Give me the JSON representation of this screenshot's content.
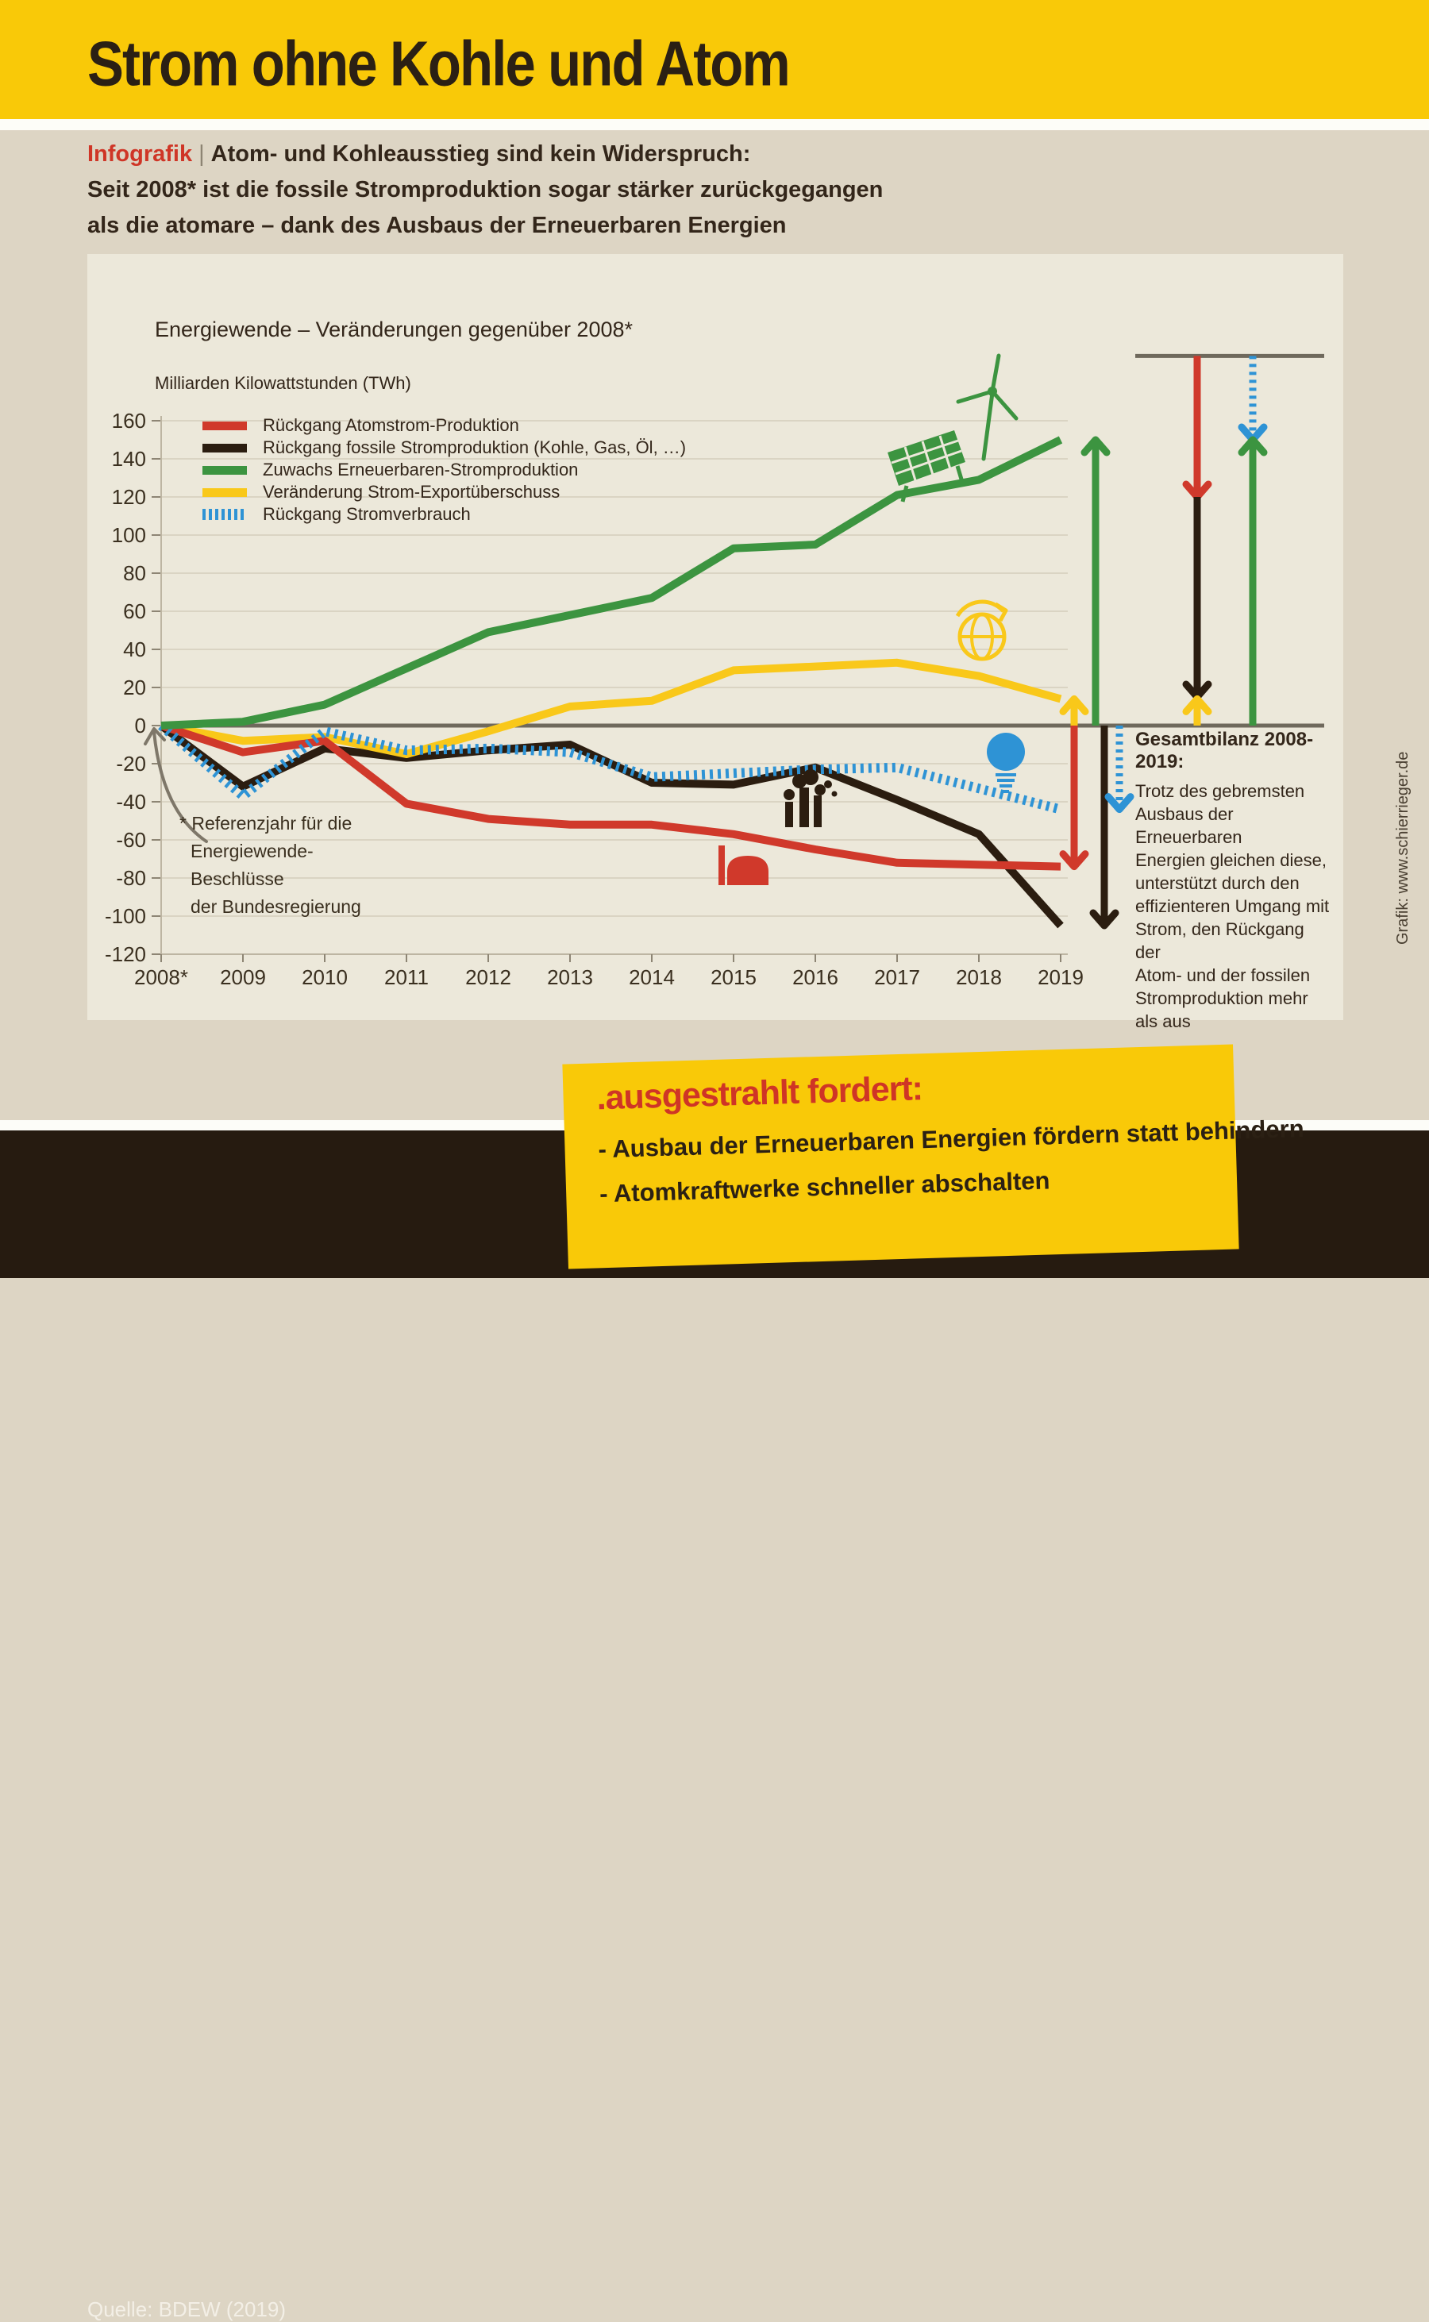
{
  "header": {
    "title": "Strom ohne Kohle und Atom"
  },
  "intro": {
    "tag": "Infografik",
    "separator": "|",
    "line1": "Atom- und Kohleausstieg sind kein Widerspruch:",
    "line2": "Seit 2008* ist die fossile Stromproduktion sogar stärker zurückgegangen",
    "line3": "als die atomare – dank des Ausbaus der Erneuerbaren Energien"
  },
  "chart_data": {
    "type": "line",
    "title": "Energiewende – Veränderungen gegenüber 2008*",
    "ylabel": "Milliarden Kilowattstunden (TWh)",
    "x_labels": [
      "2008*",
      "2009",
      "2010",
      "2011",
      "2012",
      "2013",
      "2014",
      "2015",
      "2016",
      "2017",
      "2018",
      "2019"
    ],
    "y_ticks": [
      160,
      140,
      120,
      100,
      80,
      60,
      40,
      20,
      0,
      -20,
      -40,
      -60,
      -80,
      -100,
      -120
    ],
    "ylim": [
      -120,
      160
    ],
    "grid": true,
    "legend_position": "top-left",
    "series": [
      {
        "id": "fossil",
        "name": "Rückgang fossile Stromproduktion (Kohle, Gas, Öl, …)",
        "color": "#2b1d10",
        "dash": "solid",
        "values": [
          0,
          -32,
          -12,
          -17,
          -13,
          -10,
          -30,
          -31,
          -22,
          -39,
          -57,
          -105
        ]
      },
      {
        "id": "export",
        "name": "Veränderung Strom-Exportüberschuss",
        "color": "#f9c81a",
        "dash": "solid",
        "values": [
          0,
          -8,
          -6,
          -15,
          -3,
          10,
          13,
          29,
          31,
          33,
          26,
          14
        ]
      },
      {
        "id": "atom",
        "name": "Rückgang Atomstrom-Produktion",
        "color": "#d0392b",
        "dash": "solid",
        "values": [
          0,
          -14,
          -8,
          -41,
          -49,
          -52,
          -52,
          -57,
          -65,
          -72,
          -73,
          -74
        ]
      },
      {
        "id": "verbrauch",
        "name": "Rückgang Stromverbrauch",
        "color": "#2e93d5",
        "dash": "dotted",
        "values": [
          0,
          -37,
          -3,
          -13,
          -12,
          -14,
          -27,
          -25,
          -23,
          -22,
          -33,
          -44
        ]
      },
      {
        "id": "erneuerbare",
        "name": "Zuwachs Erneuerbaren-Stromproduktion",
        "color": "#3c9440",
        "dash": "solid",
        "values": [
          0,
          2,
          11,
          30,
          49,
          58,
          67,
          93,
          95,
          121,
          129,
          150
        ]
      }
    ],
    "legend_order": [
      "atom",
      "fossil",
      "erneuerbare",
      "export",
      "verbrauch"
    ],
    "end_arrows": [
      {
        "series": "export",
        "value": 14,
        "direction": "up"
      },
      {
        "series": "atom",
        "value": -74,
        "direction": "down"
      },
      {
        "series": "erneuerbare",
        "value": 150,
        "direction": "up"
      },
      {
        "series": "fossil",
        "value": -105,
        "direction": "down"
      },
      {
        "series": "verbrauch",
        "value": -44,
        "direction": "down"
      }
    ],
    "balance_diagram": {
      "span_twh": 194,
      "left_stack": [
        {
          "series": "atom",
          "value": 74,
          "direction": "down"
        },
        {
          "series": "fossil",
          "value": 105,
          "direction": "down"
        },
        {
          "series": "export",
          "value": 14,
          "direction": "up"
        }
      ],
      "right_stack": [
        {
          "series": "verbrauch",
          "value": 44,
          "direction": "down"
        },
        {
          "series": "erneuerbare",
          "value": 150,
          "direction": "up"
        }
      ]
    },
    "icons": [
      "solar-panel",
      "wind-turbine",
      "globe-export",
      "light-bulb",
      "factory-chimneys",
      "nuclear-plant-dome"
    ]
  },
  "footnote": {
    "text": "* Referenzjahr für die\nEnergiewende-Beschlüsse\nder Bundesregierung"
  },
  "balance_note": {
    "title": "Gesamtbilanz 2008-2019:",
    "text": "Trotz des gebremsten\nAusbaus der Erneuerbaren\nEnergien gleichen diese,\nunterstützt durch den\neffizienteren Umgang mit\nStrom, den Rückgang der\nAtom- und der fossilen\nStromproduktion mehr\nals aus"
  },
  "credit": "Grafik: www.schierrieger.de",
  "source": "Quelle: BDEW (2019)",
  "demand_box": {
    "title": ".ausgestrahlt fordert:",
    "items": [
      "- Ausbau der Erneuerbaren Energien fördern statt behindern",
      "- Atomkraftwerke schneller abschalten"
    ]
  },
  "colors": {
    "header_yellow": "#f9c908",
    "panel_bg": "#ece8da",
    "page_bg": "#ddd5c4",
    "grid": "#dad4c3",
    "zero_line": "#6f695c",
    "dark_strip": "#261b10",
    "accent_red": "#cf3526"
  }
}
